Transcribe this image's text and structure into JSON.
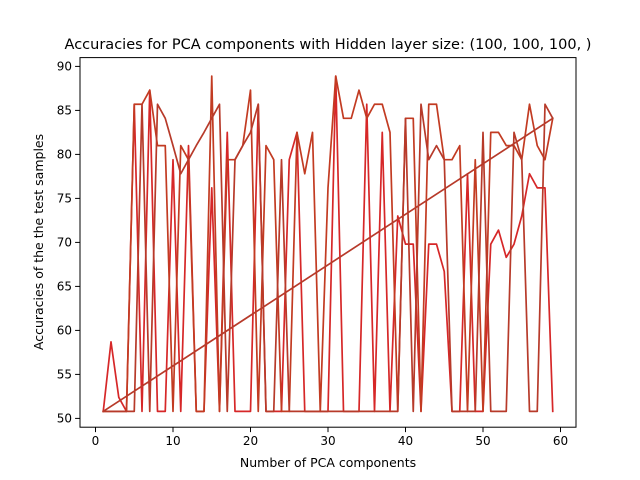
{
  "chart_data": {
    "type": "line",
    "title": "Accuracies for PCA components with Hidden layer size: (100, 100, 100, )",
    "xlabel": "Number of PCA components",
    "ylabel": "Accuracies of the the test samples",
    "xlim": [
      -2,
      62
    ],
    "ylim": [
      49.0,
      91.0
    ],
    "xticks": [
      0,
      10,
      20,
      30,
      40,
      50,
      60
    ],
    "yticks": [
      50,
      55,
      60,
      65,
      70,
      75,
      80,
      85,
      90
    ],
    "grid": false,
    "legend": "none",
    "colors": [
      "#d62728",
      "#c23b22",
      "#b73a2a"
    ],
    "series": [
      {
        "x": [
          1,
          2,
          3,
          4,
          5,
          6,
          7,
          8,
          9,
          10,
          11,
          12,
          13,
          14,
          15,
          16,
          17,
          18,
          19,
          20,
          21,
          22,
          23,
          24,
          25,
          26,
          27,
          28,
          29,
          30,
          31,
          32,
          33,
          34,
          35,
          36,
          37,
          38,
          39,
          40,
          41,
          42,
          43,
          44,
          45,
          46,
          47,
          48,
          49,
          50,
          51,
          52,
          53,
          54,
          55,
          56,
          57,
          58,
          59
        ],
        "y": [
          50.8,
          58.7,
          52.4,
          50.8,
          85.7,
          50.8,
          87.3,
          50.8,
          50.8,
          79.4,
          50.8,
          81.0,
          50.8,
          50.8,
          76.2,
          50.8,
          82.5,
          50.8,
          50.8,
          50.8,
          85.7,
          50.8,
          50.8,
          50.8,
          79.4,
          82.5,
          50.8,
          50.8,
          50.8,
          50.8,
          88.9,
          50.8,
          50.8,
          50.8,
          85.7,
          50.8,
          82.5,
          50.8,
          73.0,
          69.8,
          69.8,
          50.8,
          69.8,
          69.8,
          66.7,
          50.8,
          50.8,
          77.8,
          50.8,
          50.8,
          69.8,
          71.4,
          68.3,
          69.8,
          73.0,
          77.8,
          76.2,
          76.2,
          50.8
        ]
      },
      {
        "x": [
          1,
          2,
          3,
          4,
          5,
          6,
          7,
          8,
          9,
          10,
          11,
          12,
          13,
          14,
          15,
          16,
          17,
          18,
          19,
          20,
          21,
          22,
          23,
          24,
          25,
          26,
          27,
          28,
          29,
          30,
          31,
          32,
          33,
          34,
          35,
          36,
          37,
          38,
          39,
          40,
          41,
          42,
          43,
          44,
          45,
          46,
          47,
          48,
          49,
          50,
          51,
          52,
          53,
          54,
          55,
          56,
          57,
          58,
          59
        ],
        "y": [
          50.8,
          50.8,
          50.8,
          50.8,
          85.7,
          85.7,
          87.3,
          81.0,
          81.0,
          50.8,
          81.0,
          79.4,
          50.8,
          50.8,
          88.9,
          50.8,
          79.4,
          79.4,
          81.0,
          87.3,
          50.8,
          81.0,
          79.4,
          50.8,
          50.8,
          82.5,
          77.8,
          82.5,
          50.8,
          76.2,
          88.9,
          84.1,
          84.1,
          87.3,
          84.1,
          85.7,
          85.7,
          82.5,
          50.8,
          84.1,
          84.1,
          50.8,
          85.7,
          85.7,
          79.4,
          79.4,
          81.0,
          50.8,
          79.4,
          50.8,
          82.5,
          82.5,
          81.0,
          81.0,
          79.4,
          85.7,
          81.0,
          79.4,
          84.1
        ]
      },
      {
        "x": [
          1,
          2,
          3,
          4,
          5,
          6,
          7,
          8,
          9,
          10,
          11,
          12,
          13,
          14,
          15,
          16,
          17,
          18,
          19,
          20,
          21,
          22,
          23,
          24,
          25,
          26,
          27,
          28,
          29,
          30,
          31,
          32,
          33,
          34,
          35,
          36,
          37,
          38,
          39,
          40,
          41,
          42,
          43,
          44,
          45,
          46,
          47,
          48,
          49,
          50,
          51,
          52,
          53,
          54,
          55,
          56,
          57,
          58,
          59,
          1
        ],
        "y": [
          50.8,
          50.8,
          50.8,
          50.8,
          50.8,
          85.7,
          50.8,
          85.7,
          84.1,
          81.0,
          77.8,
          79.4,
          81.0,
          82.5,
          84.1,
          85.7,
          50.8,
          79.4,
          81.0,
          82.5,
          85.7,
          50.8,
          50.8,
          79.4,
          50.8,
          50.8,
          50.8,
          50.8,
          50.8,
          50.8,
          50.8,
          50.8,
          50.8,
          50.8,
          50.8,
          50.8,
          50.8,
          50.8,
          50.8,
          84.1,
          50.8,
          85.7,
          79.4,
          81.0,
          79.4,
          50.8,
          50.8,
          50.8,
          50.8,
          82.5,
          50.8,
          50.8,
          50.8,
          82.5,
          79.4,
          50.8,
          50.8,
          85.7,
          84.1,
          50.8
        ]
      }
    ]
  }
}
